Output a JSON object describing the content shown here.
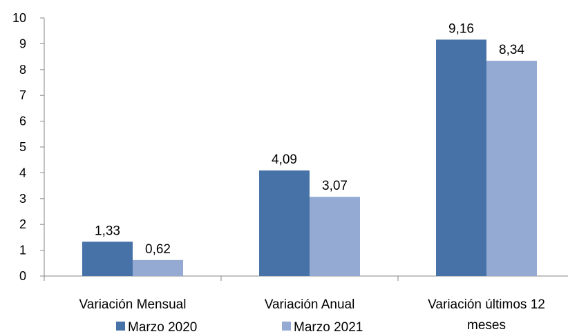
{
  "chart_data": {
    "type": "bar",
    "categories": [
      [
        "Variación Mensual"
      ],
      [
        "Variación  Anual"
      ],
      [
        "Variación últimos 12",
        "meses"
      ]
    ],
    "series": [
      {
        "name": "Marzo 2020",
        "values": [
          1.33,
          4.09,
          9.16
        ],
        "labels": [
          "1,33",
          "4,09",
          "9,16"
        ],
        "color": "#4672A8"
      },
      {
        "name": "Marzo 2021",
        "values": [
          0.62,
          3.07,
          8.34
        ],
        "labels": [
          "0,62",
          "3,07",
          "8,34"
        ],
        "color": "#94AAD3"
      }
    ],
    "ylim": [
      0,
      10
    ],
    "yticks": [
      0,
      1,
      2,
      3,
      4,
      5,
      6,
      7,
      8,
      9,
      10
    ],
    "grid": false,
    "legend": "bottom",
    "axis_color": "#868686"
  }
}
